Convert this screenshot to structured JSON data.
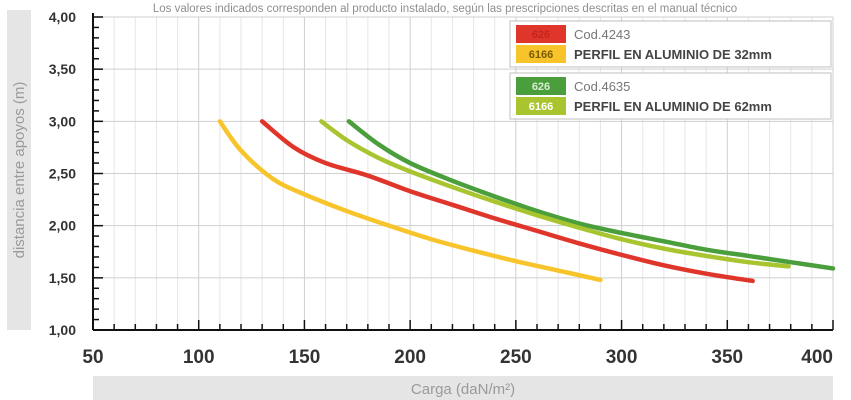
{
  "note": "Los valores indicados corresponden al producto instalado, según las prescripciones descritas en el manual técnico",
  "chart_data": {
    "type": "line",
    "xlabel": "Carga (daN/m²)",
    "ylabel": "distancia entre apoyos (m)",
    "xlim": [
      50,
      400
    ],
    "ylim": [
      1.0,
      4.0
    ],
    "x_ticks": [
      "50",
      "100",
      "150",
      "200",
      "250",
      "300",
      "350",
      "400"
    ],
    "y_ticks": [
      "1,00",
      "1,50",
      "2,00",
      "2,50",
      "3,00",
      "3,50",
      "4,00"
    ],
    "grid": true,
    "legend_position": "top-right",
    "legend": [
      {
        "code": "Cod.4243",
        "title": "PERFIL EN ALUMINIO DE 32mm",
        "entries": [
          {
            "label": "626",
            "color": "#e0352b"
          },
          {
            "label": "6166",
            "color": "#f7c52b"
          }
        ]
      },
      {
        "code": "Cod.4635",
        "title": "PERFIL EN ALUMINIO DE 62mm",
        "entries": [
          {
            "label": "626",
            "color": "#4a9e3b"
          },
          {
            "label": "6166",
            "color": "#a8c52f"
          }
        ]
      }
    ],
    "series": [
      {
        "name": "626",
        "color": "#e0352b",
        "x": [
          130,
          145,
          160,
          180,
          200,
          220,
          240,
          260,
          280,
          300,
          320,
          340,
          362
        ],
        "y": [
          3.0,
          2.75,
          2.6,
          2.48,
          2.33,
          2.2,
          2.07,
          1.95,
          1.83,
          1.72,
          1.62,
          1.54,
          1.47
        ]
      },
      {
        "name": "6166",
        "color": "#f7c52b",
        "x": [
          110,
          120,
          135,
          150,
          170,
          190,
          210,
          230,
          250,
          270,
          290
        ],
        "y": [
          3.0,
          2.72,
          2.45,
          2.3,
          2.14,
          2.0,
          1.87,
          1.76,
          1.66,
          1.57,
          1.48
        ]
      },
      {
        "name": "626",
        "color": "#4a9e3b",
        "x": [
          171,
          185,
          200,
          220,
          240,
          260,
          280,
          300,
          320,
          340,
          360,
          380,
          400
        ],
        "y": [
          3.0,
          2.78,
          2.6,
          2.43,
          2.28,
          2.14,
          2.02,
          1.93,
          1.85,
          1.77,
          1.71,
          1.65,
          1.59
        ]
      },
      {
        "name": "6166",
        "color": "#a8c52f",
        "x": [
          158,
          170,
          185,
          200,
          220,
          240,
          260,
          280,
          300,
          320,
          340,
          360,
          379
        ],
        "y": [
          3.0,
          2.82,
          2.65,
          2.52,
          2.37,
          2.23,
          2.1,
          1.98,
          1.87,
          1.78,
          1.71,
          1.65,
          1.61
        ]
      }
    ]
  }
}
